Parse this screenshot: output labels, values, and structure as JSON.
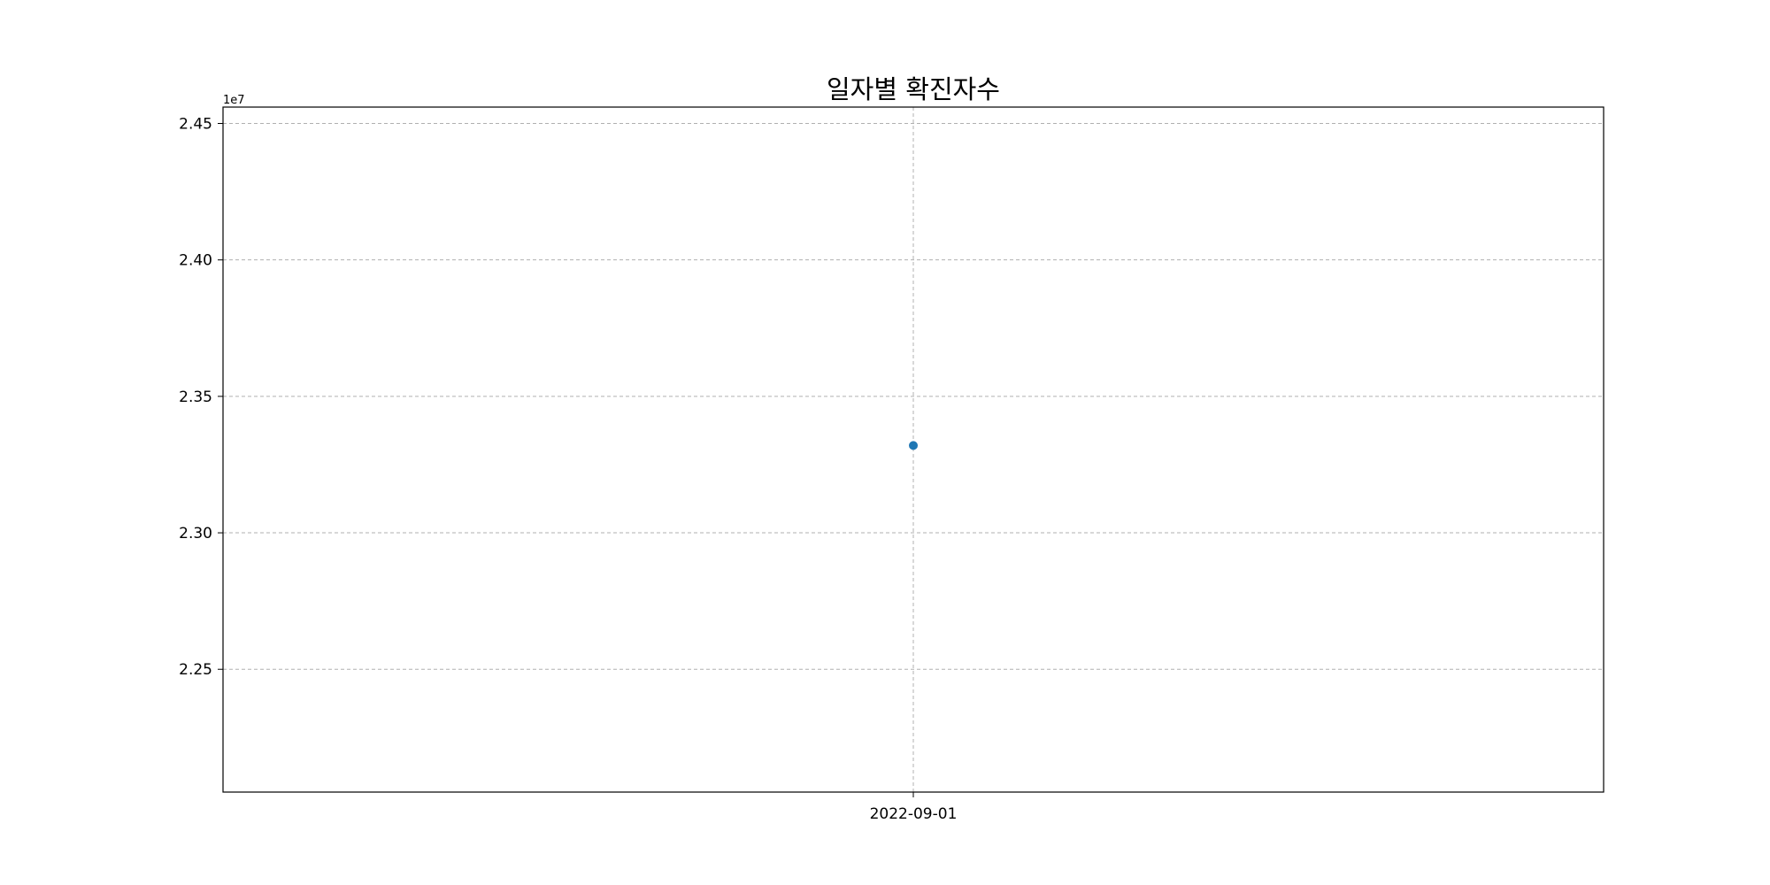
{
  "chart_data": {
    "type": "scatter",
    "title": "일자별 확진자수",
    "xlabel": "",
    "ylabel": "",
    "offset_text": "1e7",
    "x": [
      "2022-09-01"
    ],
    "series": [
      {
        "values": [
          23320000
        ]
      }
    ],
    "ylim": [
      22050000,
      24560000
    ],
    "y_ticks": [
      22500000,
      23000000,
      23500000,
      24000000,
      24500000
    ],
    "y_tick_labels": [
      "2.25",
      "2.30",
      "2.35",
      "2.40",
      "2.45"
    ],
    "x_tick_labels": [
      "2022-09-01"
    ],
    "grid": true,
    "marker_color": "#1f77b4"
  }
}
